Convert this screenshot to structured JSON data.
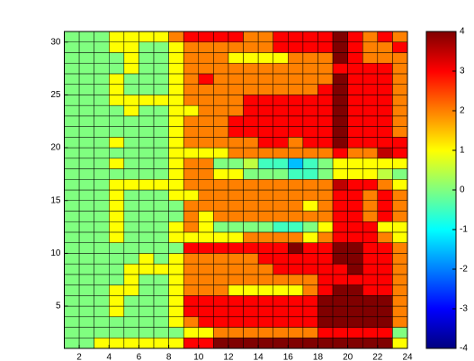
{
  "chart_data": {
    "type": "heatmap",
    "colormap": "jet",
    "x": [
      1,
      2,
      3,
      4,
      5,
      6,
      7,
      8,
      9,
      10,
      11,
      12,
      13,
      14,
      15,
      16,
      17,
      18,
      19,
      20,
      21,
      22,
      23
    ],
    "y": [
      1,
      2,
      3,
      4,
      5,
      6,
      7,
      8,
      9,
      10,
      11,
      12,
      13,
      14,
      15,
      16,
      17,
      18,
      19,
      20,
      21,
      22,
      23,
      24,
      25,
      26,
      27,
      28,
      29,
      30
    ],
    "xlim": [
      1,
      24
    ],
    "ylim": [
      1,
      31
    ],
    "xticks": [
      2,
      4,
      6,
      8,
      10,
      12,
      14,
      16,
      18,
      20,
      22,
      24
    ],
    "yticks": [
      5,
      10,
      15,
      20,
      25,
      30
    ],
    "clim": [
      -4,
      4
    ],
    "cticks": [
      -4,
      -3,
      -2,
      -1,
      0,
      1,
      2,
      3,
      4
    ],
    "z": [
      [
        0,
        0,
        1,
        1,
        1,
        1,
        1,
        1,
        3,
        3,
        4,
        4,
        4,
        4,
        4,
        4,
        4,
        4,
        4,
        4,
        4,
        4,
        1
      ],
      [
        0,
        0,
        0,
        0,
        0,
        0,
        0,
        0,
        1,
        1,
        2,
        2,
        2,
        2,
        2,
        2,
        2,
        3,
        3,
        3,
        3,
        3,
        0
      ],
      [
        0,
        0,
        0,
        0,
        0,
        0,
        0,
        1,
        2,
        3,
        3,
        3,
        3,
        3,
        3,
        3,
        3,
        4,
        4,
        4,
        4,
        4,
        2
      ],
      [
        0,
        0,
        0,
        1,
        0,
        0,
        0,
        1,
        3,
        3,
        3,
        3,
        3,
        3,
        3,
        3,
        3,
        4,
        4,
        4,
        4,
        4,
        2
      ],
      [
        0,
        0,
        0,
        1,
        0,
        0,
        0,
        1,
        3,
        3,
        3,
        3,
        3,
        3,
        3,
        3,
        3,
        4,
        4,
        4,
        4,
        4,
        2
      ],
      [
        0,
        0,
        0,
        1,
        1,
        0,
        0,
        1,
        2,
        2,
        2,
        1,
        1,
        1,
        1,
        1,
        2,
        3,
        4,
        4,
        3,
        3,
        2
      ],
      [
        0,
        0,
        0,
        0,
        1,
        0,
        0,
        1,
        2,
        2,
        2,
        2,
        2,
        2,
        2,
        2,
        2,
        3,
        3,
        3,
        3,
        3,
        2
      ],
      [
        0,
        0,
        0,
        0,
        1,
        1,
        1,
        1,
        2,
        2,
        2,
        2,
        2,
        2,
        3,
        3,
        3,
        3,
        3,
        4,
        3,
        3,
        2
      ],
      [
        0,
        0,
        0,
        0,
        0,
        1,
        0,
        1,
        2,
        2,
        2,
        2,
        2,
        3,
        3,
        3,
        3,
        3,
        4,
        4,
        3,
        3,
        2
      ],
      [
        0,
        0,
        0,
        0,
        0,
        0,
        0,
        0,
        3,
        3,
        3,
        3,
        3,
        3,
        3,
        4,
        3,
        3,
        4,
        4,
        3,
        3,
        2
      ],
      [
        0,
        0,
        0,
        1,
        0,
        0,
        0,
        1,
        1,
        1,
        1,
        1,
        2,
        2,
        2,
        2,
        1,
        2,
        3,
        3,
        3,
        2,
        1
      ],
      [
        0,
        0,
        0,
        1,
        0,
        0,
        0,
        1,
        2,
        1,
        0,
        0,
        0,
        0,
        -0.5,
        -0.5,
        0,
        1,
        3,
        3,
        3,
        1,
        1
      ],
      [
        0,
        0,
        0,
        1,
        0,
        0,
        0,
        0,
        2,
        1,
        2,
        2,
        2,
        2,
        2,
        2,
        2,
        2,
        3,
        3,
        2,
        3,
        2
      ],
      [
        0,
        0,
        0,
        1,
        0,
        0,
        0,
        0,
        2,
        2,
        2,
        2,
        2,
        2,
        2,
        2,
        1,
        2,
        3,
        3,
        2,
        3,
        2
      ],
      [
        0,
        0,
        0,
        1,
        0,
        0,
        0,
        1,
        1,
        2,
        2,
        2,
        2,
        2,
        2,
        2,
        2,
        2,
        3,
        3,
        2,
        3,
        2
      ],
      [
        0,
        0,
        0,
        1,
        1,
        1,
        1,
        1,
        2,
        2,
        2,
        2,
        2,
        2,
        2,
        2,
        2,
        2,
        3.5,
        3,
        3,
        2,
        1
      ],
      [
        0,
        0,
        0,
        0,
        0,
        0,
        0,
        1,
        2,
        2,
        1,
        1,
        0,
        0,
        0,
        -0.5,
        -0.5,
        0,
        1,
        1,
        1,
        0.5,
        0
      ],
      [
        0,
        0,
        0,
        1,
        0,
        0,
        0,
        1,
        2,
        2,
        0,
        0,
        0.5,
        -0.5,
        -0.5,
        -1.5,
        -0.5,
        0,
        1,
        1,
        1,
        1,
        1
      ],
      [
        0,
        0,
        0,
        0,
        0,
        0,
        0,
        1,
        1,
        1,
        1,
        2,
        2,
        2,
        2,
        2,
        2,
        2,
        3,
        2,
        2,
        3.5,
        3
      ],
      [
        0,
        0,
        0,
        1,
        0,
        0,
        0,
        1,
        2,
        2,
        2,
        2,
        2,
        3,
        3,
        2,
        3,
        3,
        4,
        3,
        3,
        3,
        3
      ],
      [
        0,
        0,
        0,
        0,
        0,
        0,
        0,
        1,
        2,
        2,
        2,
        3,
        3,
        3,
        3,
        3,
        3,
        3,
        4,
        3,
        3,
        3,
        2
      ],
      [
        0,
        0,
        0,
        0,
        0,
        0,
        0,
        1,
        2,
        2,
        2,
        3,
        3,
        3,
        3,
        3,
        3,
        3,
        4,
        3,
        3,
        3,
        2
      ],
      [
        0,
        0,
        0,
        0,
        1,
        0,
        0,
        1,
        1,
        2,
        2,
        2,
        3,
        3,
        3,
        3,
        3,
        3,
        4,
        3,
        3,
        3,
        2
      ],
      [
        0,
        0,
        0,
        1,
        1,
        1,
        1,
        1,
        2,
        2,
        2,
        2,
        3,
        3,
        3,
        3,
        3,
        3,
        4,
        3,
        3,
        3,
        2
      ],
      [
        0,
        0,
        0,
        1,
        0,
        0,
        0,
        1,
        2,
        2,
        2,
        2,
        2,
        2,
        2,
        2,
        2,
        3,
        4,
        3,
        3,
        3,
        2
      ],
      [
        0,
        0,
        0,
        1,
        0,
        0,
        0,
        1,
        2,
        3,
        2,
        2,
        2,
        2,
        2,
        2,
        2,
        2,
        4,
        3,
        3,
        3,
        2
      ],
      [
        0,
        0,
        0,
        0,
        1,
        0,
        0,
        1,
        2,
        2,
        2,
        2,
        2,
        2,
        2,
        2,
        2,
        2,
        3,
        3,
        3,
        3,
        2
      ],
      [
        0,
        0,
        0,
        0,
        1,
        0,
        0,
        1,
        2,
        2,
        2,
        1,
        1,
        1,
        1,
        2,
        2,
        2,
        4,
        3,
        2,
        2,
        2
      ],
      [
        0,
        0,
        0,
        1,
        1,
        0,
        0,
        1,
        2,
        2,
        2,
        2,
        2,
        2,
        3,
        3,
        3,
        3,
        4,
        3,
        2,
        2,
        3
      ],
      [
        0,
        0,
        0,
        1,
        1,
        1,
        1,
        2,
        3,
        3,
        3,
        3,
        2,
        2,
        3,
        3,
        3,
        3,
        4,
        3,
        2,
        3,
        2
      ]
    ]
  }
}
